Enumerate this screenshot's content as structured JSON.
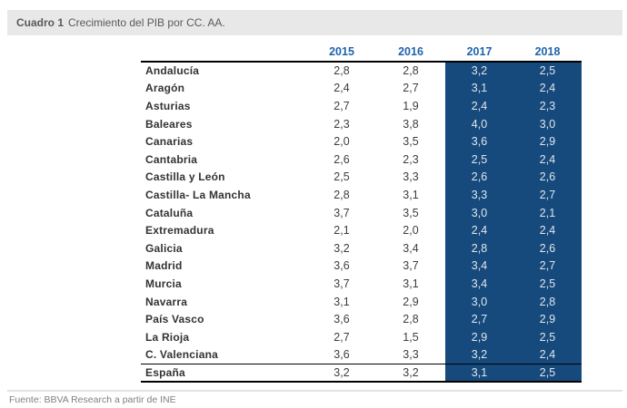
{
  "title_bar": {
    "label": "Cuadro 1",
    "title": "Crecimiento del PIB por CC. AA."
  },
  "footer": {
    "source": "Fuente: BBVA Research a partir de INE"
  },
  "colors": {
    "title_bar_bg": "#e8e8e8",
    "title_text": "#595959",
    "year_header_color": "#1f63ac",
    "highlight_bg": "#174a7c",
    "highlight_text": "#dfe6ee"
  },
  "chart_data": {
    "type": "table",
    "title": "Cuadro 1 Crecimiento del PIB por CC. AA.",
    "columns": [
      "",
      "2015",
      "2016",
      "2017",
      "2018"
    ],
    "highlighted_columns": [
      "2017",
      "2018"
    ],
    "rows": [
      {
        "label": "Andalucía",
        "values": [
          "2,8",
          "2,8",
          "3,2",
          "2,5"
        ]
      },
      {
        "label": "Aragón",
        "values": [
          "2,4",
          "2,7",
          "3,1",
          "2,4"
        ]
      },
      {
        "label": "Asturias",
        "values": [
          "2,7",
          "1,9",
          "2,4",
          "2,3"
        ]
      },
      {
        "label": "Baleares",
        "values": [
          "2,3",
          "3,8",
          "4,0",
          "3,0"
        ]
      },
      {
        "label": "Canarias",
        "values": [
          "2,0",
          "3,5",
          "3,6",
          "2,9"
        ]
      },
      {
        "label": "Cantabria",
        "values": [
          "2,6",
          "2,3",
          "2,5",
          "2,4"
        ]
      },
      {
        "label": "Castilla y León",
        "values": [
          "2,5",
          "3,3",
          "2,6",
          "2,6"
        ]
      },
      {
        "label": "Castilla- La Mancha",
        "values": [
          "2,8",
          "3,1",
          "3,3",
          "2,7"
        ]
      },
      {
        "label": "Cataluña",
        "values": [
          "3,7",
          "3,5",
          "3,0",
          "2,1"
        ]
      },
      {
        "label": "Extremadura",
        "values": [
          "2,1",
          "2,0",
          "2,4",
          "2,4"
        ]
      },
      {
        "label": "Galicia",
        "values": [
          "3,2",
          "3,4",
          "2,8",
          "2,6"
        ]
      },
      {
        "label": "Madrid",
        "values": [
          "3,6",
          "3,7",
          "3,4",
          "2,7"
        ]
      },
      {
        "label": "Murcia",
        "values": [
          "3,7",
          "3,1",
          "3,4",
          "2,5"
        ]
      },
      {
        "label": "Navarra",
        "values": [
          "3,1",
          "2,9",
          "3,0",
          "2,8"
        ]
      },
      {
        "label": "País Vasco",
        "values": [
          "3,6",
          "2,8",
          "2,7",
          "2,9"
        ]
      },
      {
        "label": "La Rioja",
        "values": [
          "2,7",
          "1,5",
          "2,9",
          "2,5"
        ]
      },
      {
        "label": "C. Valenciana",
        "values": [
          "3,6",
          "3,3",
          "3,2",
          "2,4"
        ]
      },
      {
        "label": "España",
        "values": [
          "3,2",
          "3,2",
          "3,1",
          "2,5"
        ],
        "is_total": true
      }
    ],
    "source": "Fuente: BBVA Research a partir de INE",
    "layout": {
      "highlight_applies_to": "data rows only, header cells stay white"
    }
  }
}
